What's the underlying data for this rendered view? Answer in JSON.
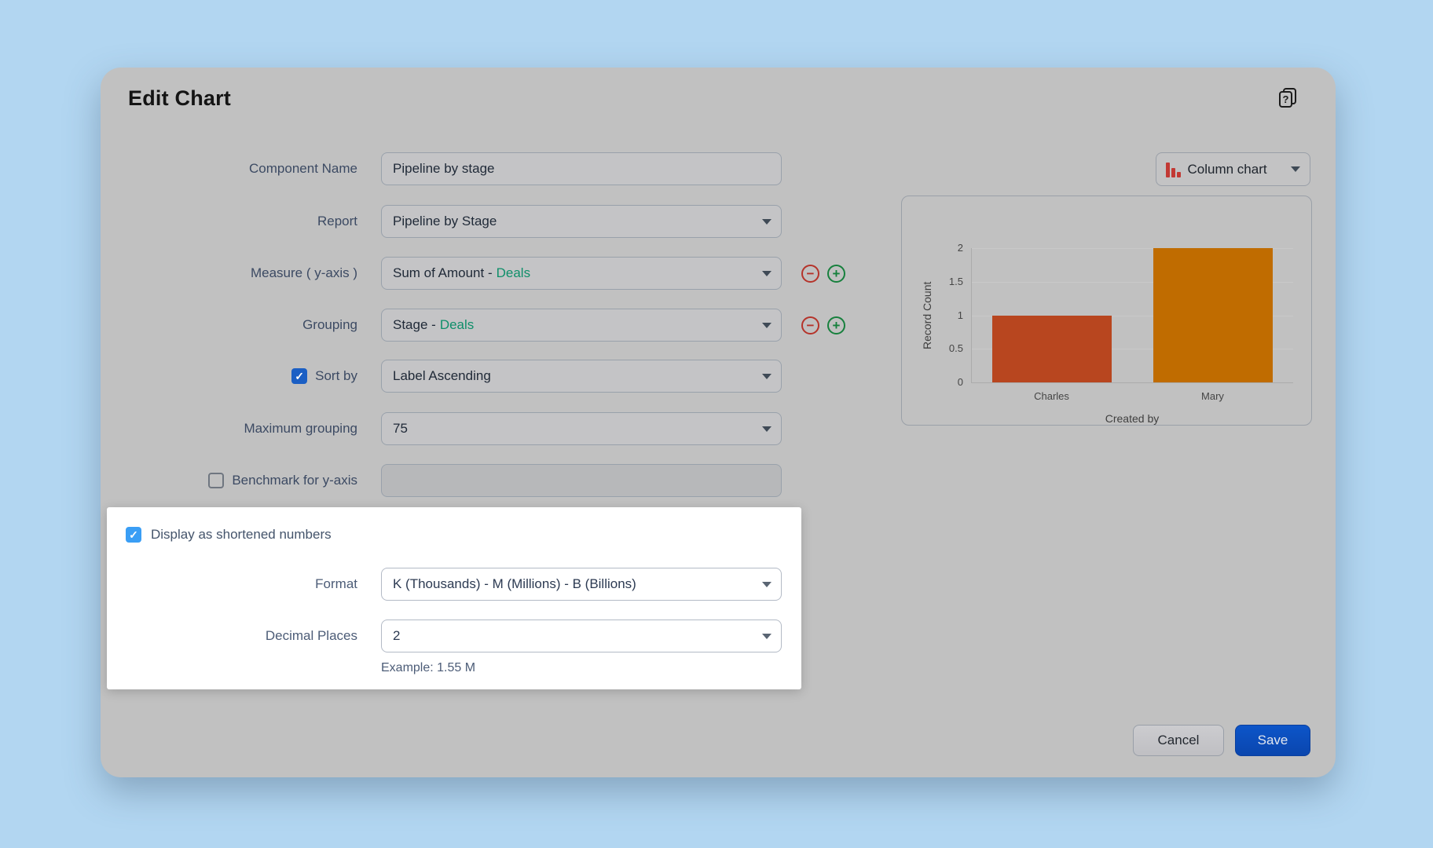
{
  "dialog": {
    "title": "Edit Chart"
  },
  "icons": {
    "help": "?",
    "check": "✓",
    "minus": "−",
    "plus": "+"
  },
  "form": {
    "component_name": {
      "label": "Component Name",
      "value": "Pipeline by stage"
    },
    "report": {
      "label": "Report",
      "value": "Pipeline by Stage"
    },
    "measure": {
      "label": "Measure ( y-axis )",
      "value_main": "Sum of Amount -",
      "value_module": "Deals"
    },
    "grouping": {
      "label": "Grouping",
      "value_main": "Stage -",
      "value_module": "Deals"
    },
    "sort_by": {
      "label": "Sort by",
      "checked": true,
      "value": "Label Ascending"
    },
    "maximum_grouping": {
      "label": "Maximum grouping",
      "value": "75"
    },
    "benchmark": {
      "label": "Benchmark for y-axis",
      "checked": false,
      "value": ""
    },
    "shortened": {
      "label": "Display as shortened numbers",
      "checked": true,
      "format": {
        "label": "Format",
        "value": "K (Thousands) - M (Millions) - B (Billions)"
      },
      "decimal_places": {
        "label": "Decimal Places",
        "value": "2"
      },
      "example": "Example: 1.55 M"
    }
  },
  "chart_type": {
    "label": "Column chart"
  },
  "chart_data": {
    "type": "bar",
    "categories": [
      "Charles",
      "Mary"
    ],
    "values": [
      1,
      2
    ],
    "title": "",
    "xlabel": "Created by",
    "ylabel": "Record Count",
    "yticks": [
      0,
      0.5,
      1,
      1.5,
      2
    ],
    "ylim": [
      0,
      2
    ],
    "grid": true,
    "legend": false,
    "bar_colors": [
      "#b8461f",
      "#c06c00"
    ]
  },
  "footer": {
    "cancel_label": "Cancel",
    "save_label": "Save"
  },
  "colors": {
    "page_background": "#b2d6f1",
    "dialog_background": "#c1c1c1",
    "spotlight_background": "#ffffff",
    "checkbox_dim_blue": "#1b5fc4",
    "checkbox_bright_blue": "#3a9ef5",
    "save_blue": "#0d55c9",
    "module_green": "#0f8f6a",
    "remove_red": "#b5332a",
    "add_green": "#17803d",
    "chart_icon_red": "#c23934"
  }
}
